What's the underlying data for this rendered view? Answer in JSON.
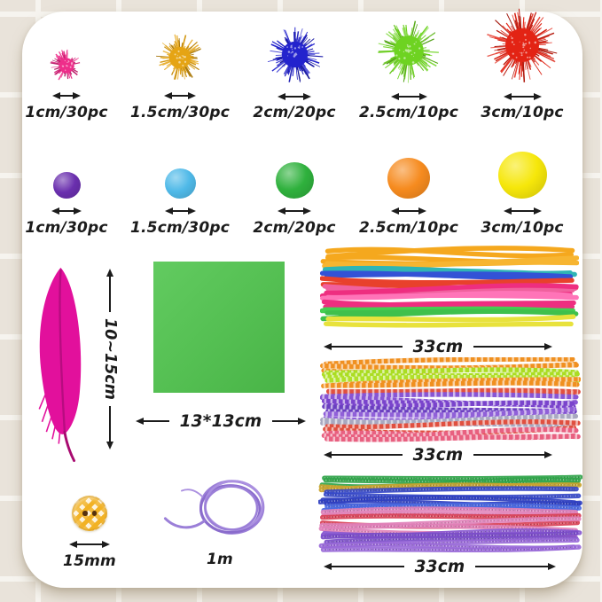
{
  "page": {
    "background": "#e9e3da",
    "card_background": "#ffffff"
  },
  "pompoms": {
    "glitter": {
      "items": [
        {
          "label": "1cm/30pc",
          "color": "#ee2d8a",
          "px": 25
        },
        {
          "label": "1.5cm/30pc",
          "color": "#e5a414",
          "px": 36
        },
        {
          "label": "2cm/20pc",
          "color": "#2323cd",
          "px": 43
        },
        {
          "label": "2.5cm/10pc",
          "color": "#6ed321",
          "px": 49
        },
        {
          "label": "3cm/10pc",
          "color": "#e32314",
          "px": 56
        }
      ]
    },
    "plain": {
      "items": [
        {
          "label": "1cm/30pc",
          "color": "#6a2fae",
          "px": 31
        },
        {
          "label": "1.5cm/30pc",
          "color": "#4fb9e8",
          "px": 35
        },
        {
          "label": "2cm/20pc",
          "color": "#2fb13d",
          "px": 43
        },
        {
          "label": "2.5cm/10pc",
          "color": "#f68b1f",
          "px": 48
        },
        {
          "label": "3cm/10pc",
          "color": "#f6e70a",
          "px": 55
        }
      ]
    }
  },
  "feather": {
    "label": "10~15cm",
    "color": "#e2109c"
  },
  "paper": {
    "label": "13*13cm",
    "color": "#54bf52"
  },
  "bundles": [
    {
      "label": "33cm",
      "style": "solid",
      "colors": [
        "#f5a81e",
        "#f5a81e",
        "#f7b531",
        "#2fb5b5",
        "#3352d6",
        "#e8412c",
        "#f0619e",
        "#ee2e80",
        "#ff74b8",
        "#ee2e80",
        "#45cf52",
        "#3fc04c",
        "#e8e23c"
      ]
    },
    {
      "label": "33cm",
      "style": "striped",
      "colors": [
        "#f09020",
        "#aadd22",
        "#b0e028",
        "#f09020",
        "#e05040",
        "#8855d4",
        "#7a44cc",
        "#6a3fc0",
        "#9060d8",
        "#a8a8c0",
        "#e05040",
        "#e86080"
      ]
    },
    {
      "label": "33cm",
      "style": "glitter",
      "colors": [
        "#30a44a",
        "#caa32e",
        "#3548c8",
        "#2f3fc0",
        "#4a68e0",
        "#e080b8",
        "#d84055",
        "#e080b8",
        "#8858d0",
        "#7a4cc8",
        "#9868d8"
      ]
    }
  ],
  "button": {
    "label": "15mm",
    "color": "#f2b224"
  },
  "cord": {
    "label": "1m",
    "color": "#9b7fd8"
  }
}
